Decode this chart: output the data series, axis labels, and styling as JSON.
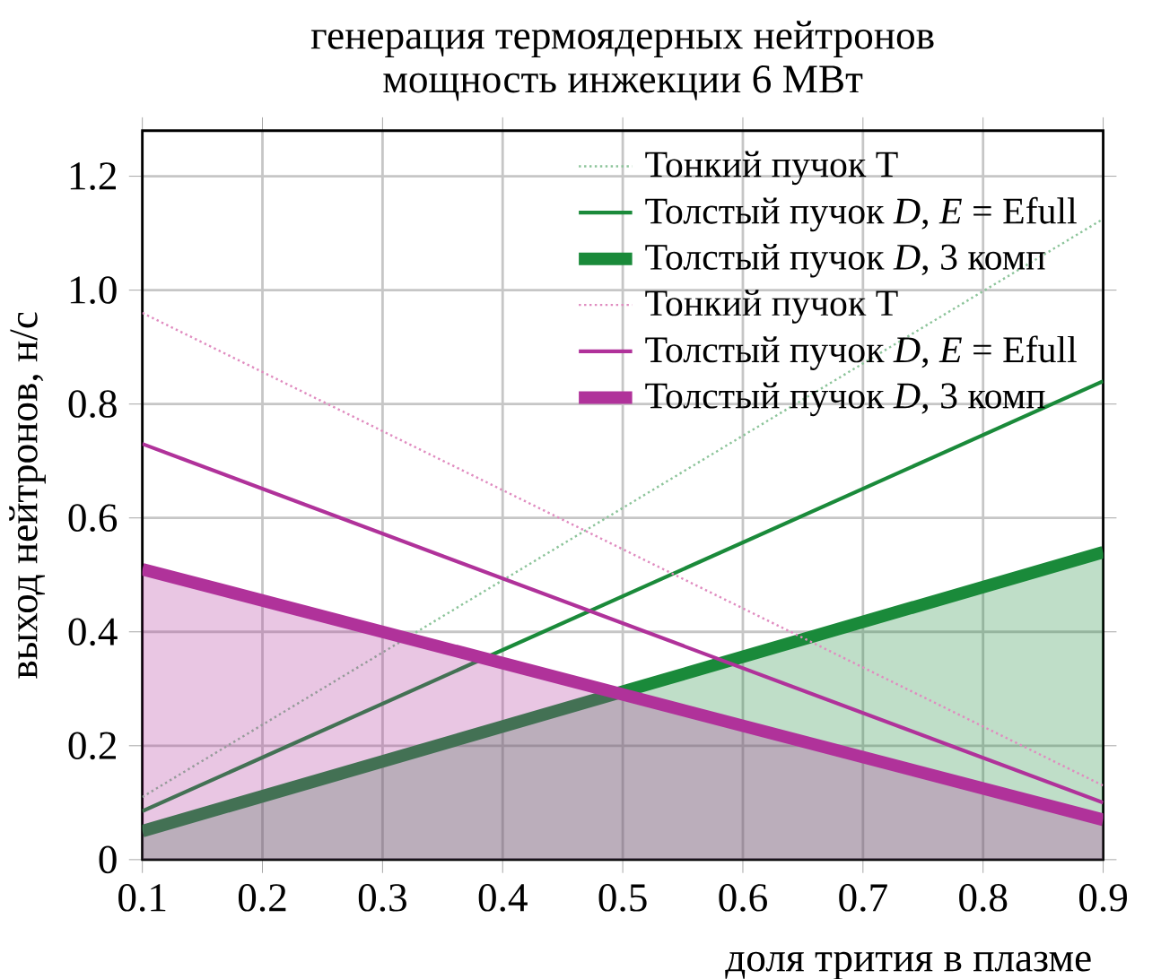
{
  "chart_data": {
    "type": "line",
    "title": "генерация термоядерных нейтронов",
    "subtitle": "мощность инжекции 6 МВт",
    "xlabel": "доля трития в плазме",
    "ylabel": "выход нейтронов, н/с",
    "x": [
      0.1,
      0.9
    ],
    "xlim": [
      0.1,
      0.9
    ],
    "ylim": [
      0,
      1.28
    ],
    "xticks": [
      0.1,
      0.2,
      0.3,
      0.4,
      0.5,
      0.6,
      0.7,
      0.8,
      0.9
    ],
    "yticks": [
      0,
      0.2,
      0.4,
      0.6,
      0.8,
      {
        "value": 1.0,
        "label": "1.0"
      },
      1.2
    ],
    "grid": true,
    "legend": "top right",
    "series": [
      {
        "name": "Тонкий пучок Т",
        "color": "#8cc49a",
        "line_style": "dotted",
        "values": [
          0.11,
          1.125
        ]
      },
      {
        "name": "Толстый пучок *D*, *E* = Efull",
        "color": "#1a8a3a",
        "values": [
          0.085,
          0.84
        ]
      },
      {
        "name": "Толстый пучок *D*, 3 комп",
        "type": "area",
        "color": "#1a8a3a",
        "values": [
          0.05,
          0.54
        ]
      },
      {
        "name": "Тонкий пучок Т",
        "color": "#e08cc0",
        "line_style": "dotted",
        "values": [
          0.96,
          0.13
        ]
      },
      {
        "name": "Толстый пучок *D*, *E* = Efull",
        "color": "#b0329a",
        "values": [
          0.73,
          0.1
        ]
      },
      {
        "name": "Толстый пучок *D*, 3 комп",
        "type": "area",
        "color": "#b0329a",
        "values": [
          0.51,
          0.07
        ]
      }
    ]
  }
}
